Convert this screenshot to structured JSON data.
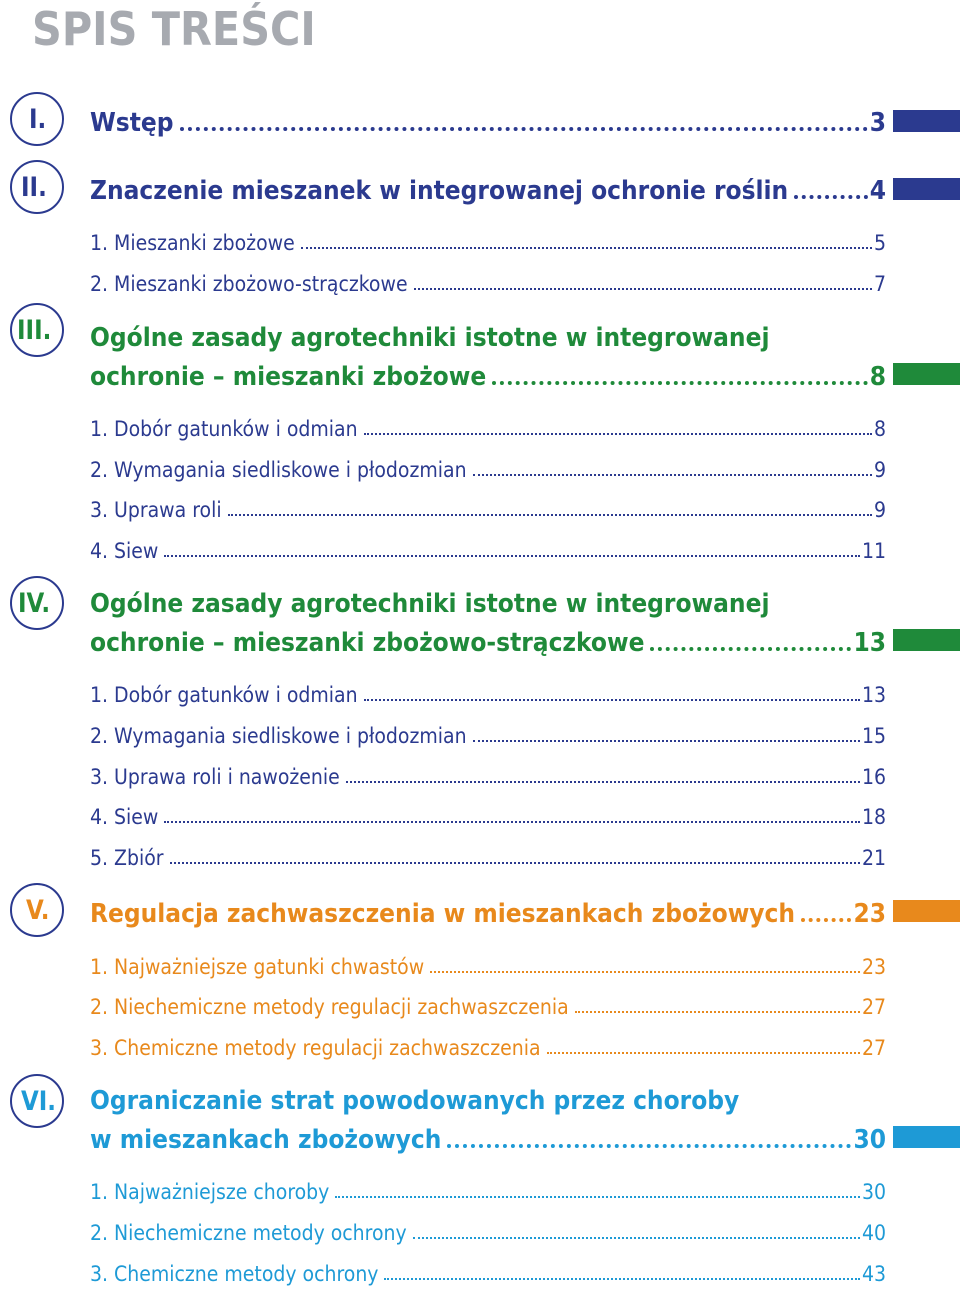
{
  "page_title": "SPIS TREŚCI",
  "sections": [
    {
      "numeral": "I.",
      "color": "#2b3a8f",
      "title_lines": [
        "Wstęp"
      ],
      "page": "3",
      "items": []
    },
    {
      "numeral": "II.",
      "color": "#2b3a8f",
      "title_lines": [
        "Znaczenie mieszanek w integrowanej ochronie roślin"
      ],
      "page": "4",
      "items": [
        {
          "label": "1. Mieszanki zbożowe",
          "page": "5"
        },
        {
          "label": "2. Mieszanki zbożowo-strączkowe",
          "page": "7"
        }
      ]
    },
    {
      "numeral": "III.",
      "color": "#1f8a3a",
      "title_lines": [
        "Ogólne zasady agrotechniki istotne w integrowanej",
        "ochronie – mieszanki zbożowe"
      ],
      "page": "8",
      "items": [
        {
          "label": "1. Dobór gatunków i odmian",
          "page": "8"
        },
        {
          "label": "2. Wymagania siedliskowe i płodozmian",
          "page": "9"
        },
        {
          "label": "3. Uprawa roli",
          "page": "9"
        },
        {
          "label": "4. Siew",
          "page": "11"
        }
      ]
    },
    {
      "numeral": "IV.",
      "color": "#1f8a3a",
      "title_lines": [
        "Ogólne zasady agrotechniki istotne w integrowanej",
        "ochronie – mieszanki zbożowo-strączkowe"
      ],
      "page": "13",
      "items": [
        {
          "label": "1. Dobór gatunków i odmian",
          "page": "13"
        },
        {
          "label": "2. Wymagania siedliskowe i płodozmian",
          "page": "15"
        },
        {
          "label": "3. Uprawa roli i nawożenie",
          "page": "16"
        },
        {
          "label": "4. Siew",
          "page": "18"
        },
        {
          "label": "5. Zbiór",
          "page": "21"
        }
      ]
    },
    {
      "numeral": "V.",
      "color": "#e8891c",
      "title_lines": [
        "Regulacja zachwaszczenia w mieszankach zbożowych"
      ],
      "page": "23",
      "items": [
        {
          "label": "1. Najważniejsze gatunki chwastów",
          "page": "23"
        },
        {
          "label": "2. Niechemiczne metody regulacji zachwaszczenia",
          "page": "27"
        },
        {
          "label": "3. Chemiczne metody regulacji zachwaszczenia",
          "page": "27"
        }
      ]
    },
    {
      "numeral": "VI.",
      "color": "#1e9ad6",
      "title_lines": [
        "Ograniczanie strat powodowanych przez choroby",
        "w mieszankach zbożowych"
      ],
      "page": "30",
      "items": [
        {
          "label": "1. Najważniejsze choroby",
          "page": "30"
        },
        {
          "label": "2. Niechemiczne metody ochrony",
          "page": "40"
        },
        {
          "label": "3. Chemiczne metody ochrony",
          "page": "43"
        }
      ]
    }
  ]
}
